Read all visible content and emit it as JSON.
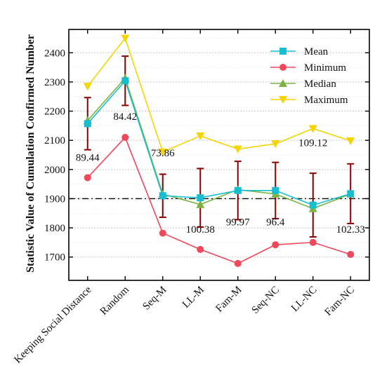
{
  "chart_data": {
    "type": "line",
    "title": "",
    "xlabel": "",
    "ylabel": "Statistic Value of Cumulation Confirmed Number",
    "categories": [
      "Keeping Social Distance",
      "Random",
      "Seq-M",
      "LL-M",
      "Fam-M",
      "Seq-NC",
      "LL-NC",
      "Fam-NC"
    ],
    "ylim": [
      1620,
      2480
    ],
    "yticks": [
      1700,
      1800,
      1900,
      2000,
      2100,
      2200,
      2300,
      2400
    ],
    "grid": "horizontal dotted",
    "legend_position": "top-right",
    "reference_line": 1900,
    "series": [
      {
        "name": "Mean",
        "color": "#17becf",
        "marker": "square",
        "values": [
          2157,
          2304,
          1910,
          1903,
          1928,
          1928,
          1878,
          1917
        ]
      },
      {
        "name": "Minimum",
        "color": "#f0475a",
        "marker": "circle",
        "values": [
          1972,
          2110,
          1782,
          1726,
          1678,
          1742,
          1750,
          1709
        ]
      },
      {
        "name": "Median",
        "color": "#7cb342",
        "marker": "triangle-up",
        "values": [
          2168,
          2313,
          1916,
          1880,
          1931,
          1916,
          1866,
          1916
        ]
      },
      {
        "name": "Maximum",
        "color": "#f5d400",
        "marker": "triangle-down",
        "values": [
          2285,
          2450,
          2060,
          2115,
          2070,
          2088,
          2140,
          2098
        ]
      }
    ],
    "error_bars": {
      "color": "#8b0000",
      "center": [
        2157,
        2304,
        1910,
        1903,
        1928,
        1928,
        1878,
        1917
      ],
      "std": [
        89.44,
        84.42,
        73.86,
        100.38,
        99.97,
        96.4,
        109.12,
        102.33
      ]
    },
    "annotations": [
      {
        "text": "89.44",
        "category": 0,
        "y": 2030
      },
      {
        "text": "84.42",
        "category": 1,
        "y": 2170
      },
      {
        "text": "73.86",
        "category": 2,
        "y": 2045
      },
      {
        "text": "100.38",
        "category": 3,
        "y": 1783
      },
      {
        "text": "99.97",
        "category": 4,
        "y": 1808
      },
      {
        "text": "96.4",
        "category": 5,
        "y": 1808
      },
      {
        "text": "109.12",
        "category": 6,
        "y": 2080
      },
      {
        "text": "102.33",
        "category": 7,
        "y": 1783
      }
    ]
  }
}
